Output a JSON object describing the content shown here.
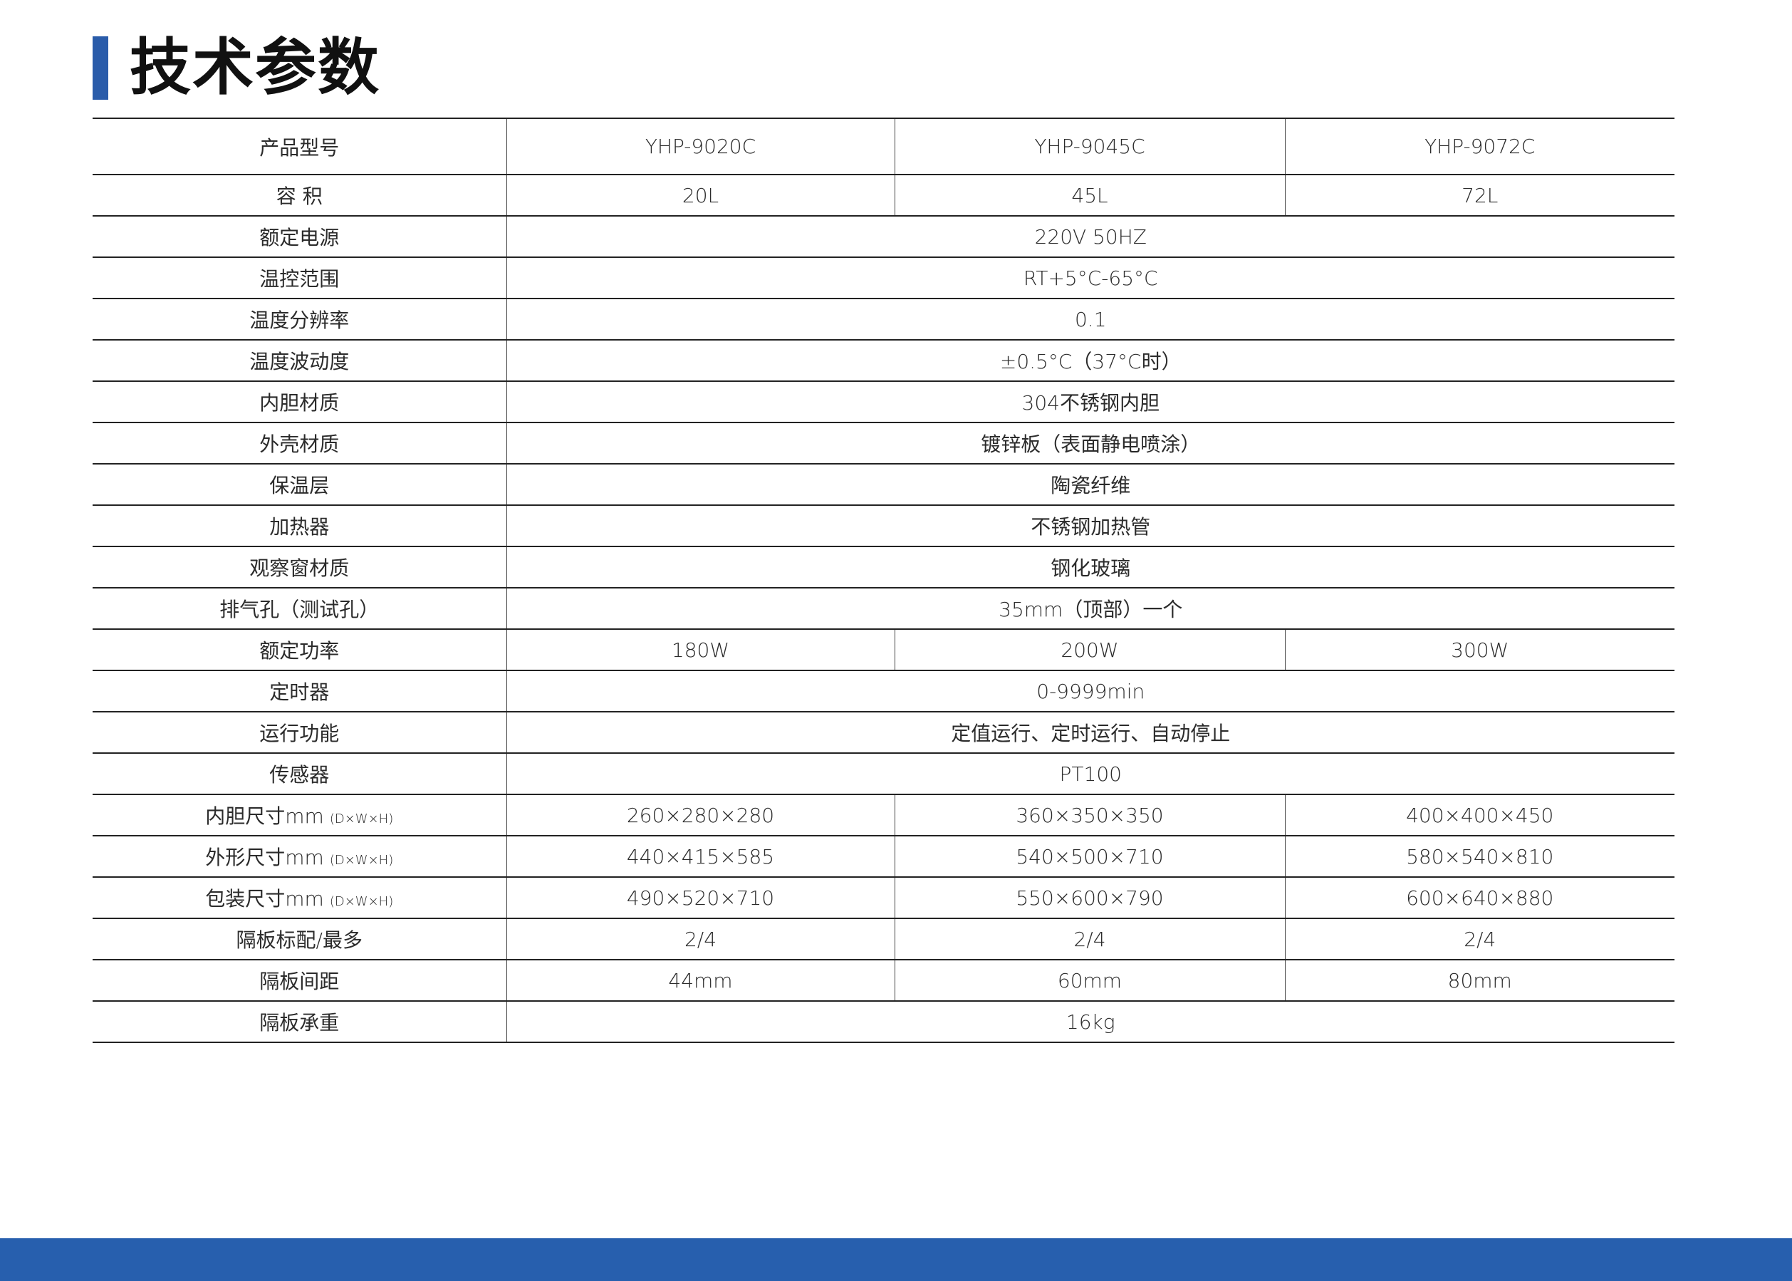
{
  "title": "技术参数",
  "colors": {
    "accent": "#2a5caa",
    "footer": "#275fae"
  },
  "header": {
    "label": "产品型号",
    "models": [
      "YHP-9020C",
      "YHP-9045C",
      "YHP-9072C"
    ]
  },
  "rows": [
    {
      "label": "容 积",
      "values": [
        "20L",
        "45L",
        "72L"
      ]
    },
    {
      "label": "额定电源",
      "value": "220V 50HZ"
    },
    {
      "label": "温控范围",
      "value": "RT+5°C-65°C"
    },
    {
      "label": "温度分辨率",
      "value": "0.1"
    },
    {
      "label": "温度波动度",
      "value": "±0.5°C（37°C时）"
    },
    {
      "label": "内胆材质",
      "value": "304不锈钢内胆"
    },
    {
      "label": "外壳材质",
      "value": "镀锌板（表面静电喷涂）"
    },
    {
      "label": "保温层",
      "value": "陶瓷纤维"
    },
    {
      "label": "加热器",
      "value": "不锈钢加热管"
    },
    {
      "label": "观察窗材质",
      "value": "钢化玻璃"
    },
    {
      "label": "排气孔（测试孔）",
      "value": "35mm（顶部）一个"
    },
    {
      "label": "额定功率",
      "values": [
        "180W",
        "200W",
        "300W"
      ]
    },
    {
      "label": "定时器",
      "value": "0-9999min"
    },
    {
      "label": "运行功能",
      "value": "定值运行、定时运行、自动停止"
    },
    {
      "label": "传感器",
      "value": "PT100"
    },
    {
      "label": "内胆尺寸mm",
      "sub": "(D×W×H)",
      "values": [
        "260×280×280",
        "360×350×350",
        "400×400×450"
      ]
    },
    {
      "label": "外形尺寸mm",
      "sub": "(D×W×H)",
      "values": [
        "440×415×585",
        "540×500×710",
        "580×540×810"
      ]
    },
    {
      "label": "包装尺寸mm",
      "sub": "(D×W×H)",
      "values": [
        "490×520×710",
        "550×600×790",
        "600×640×880"
      ]
    },
    {
      "label": "隔板标配/最多",
      "values": [
        "2/4",
        "2/4",
        "2/4"
      ]
    },
    {
      "label": "隔板间距",
      "values": [
        "44mm",
        "60mm",
        "80mm"
      ]
    },
    {
      "label": "隔板承重",
      "value": "16kg"
    }
  ]
}
